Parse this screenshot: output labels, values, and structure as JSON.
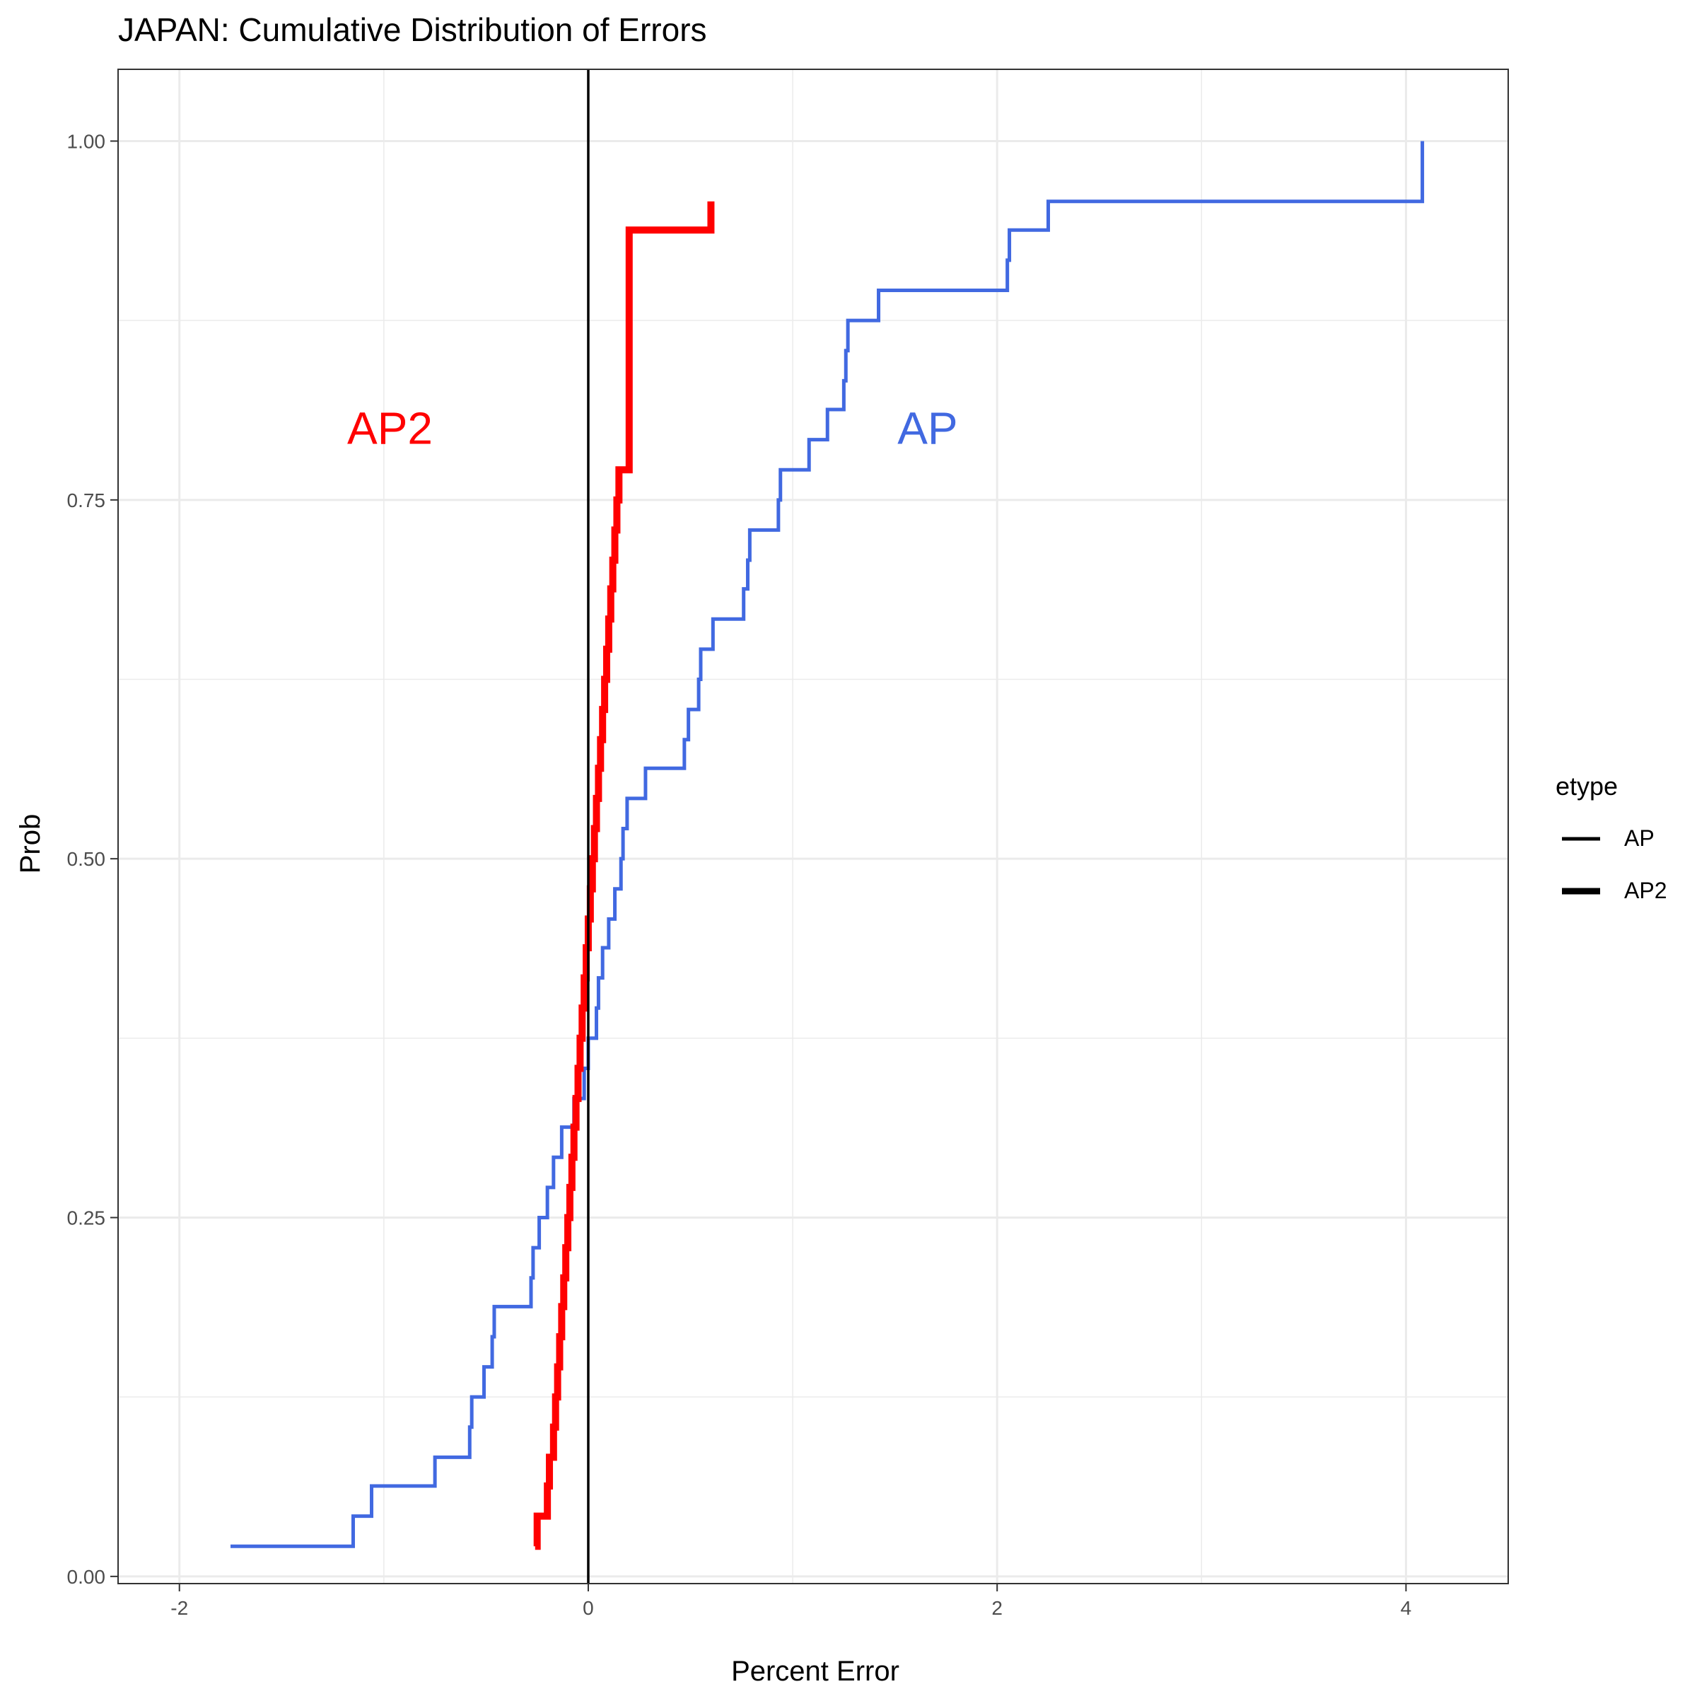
{
  "chart_data": {
    "type": "line",
    "title": "JAPAN: Cumulative Distribution of Errors",
    "xlabel": "Percent Error",
    "ylabel": "Prob",
    "xlim": [
      -2.3,
      4.5
    ],
    "ylim": [
      -0.005,
      1.05
    ],
    "x_ticks": [
      {
        "value": -2,
        "label": "-2"
      },
      {
        "value": 0,
        "label": "0"
      },
      {
        "value": 2,
        "label": "2"
      },
      {
        "value": 4,
        "label": "4"
      }
    ],
    "y_ticks": [
      {
        "value": 0,
        "label": "0.00"
      },
      {
        "value": 0.25,
        "label": "0.25"
      },
      {
        "value": 0.5,
        "label": "0.50"
      },
      {
        "value": 0.75,
        "label": "0.75"
      },
      {
        "value": 1,
        "label": "1.00"
      }
    ],
    "grid": true,
    "vline_x": 0,
    "legend": {
      "title": "etype",
      "position": "right",
      "entries": [
        "AP",
        "AP2"
      ]
    },
    "annotations": [
      {
        "text": "AP2",
        "x": -0.97,
        "y": 0.8,
        "color": "#ff0000"
      },
      {
        "text": "AP",
        "x": 1.66,
        "y": 0.8,
        "color": "#4169e1"
      }
    ],
    "series": [
      {
        "name": "AP",
        "color": "#4169e1",
        "step_x": [
          -1.75,
          -1.15,
          -1.06,
          -0.75,
          -0.58,
          -0.57,
          -0.51,
          -0.47,
          -0.46,
          -0.28,
          -0.27,
          -0.24,
          -0.2,
          -0.17,
          -0.13,
          -0.07,
          -0.02,
          0,
          0.04,
          0.05,
          0.07,
          0.1,
          0.13,
          0.16,
          0.17,
          0.19,
          0.28,
          0.47,
          0.49,
          0.54,
          0.55,
          0.61,
          0.76,
          0.78,
          0.79,
          0.93,
          0.94,
          1.08,
          1.17,
          1.25,
          1.26,
          1.27,
          1.42,
          2.05,
          2.06,
          2.25,
          4.08
        ],
        "step_y": [
          0.021,
          0.042,
          0.063,
          0.083,
          0.104,
          0.125,
          0.146,
          0.167,
          0.188,
          0.208,
          0.229,
          0.25,
          0.271,
          0.292,
          0.313,
          0.333,
          0.354,
          0.375,
          0.396,
          0.417,
          0.438,
          0.458,
          0.479,
          0.5,
          0.521,
          0.542,
          0.563,
          0.583,
          0.604,
          0.625,
          0.646,
          0.667,
          0.688,
          0.708,
          0.729,
          0.75,
          0.771,
          0.792,
          0.813,
          0.833,
          0.854,
          0.875,
          0.896,
          0.917,
          0.938,
          0.958,
          0.979
        ],
        "end": [
          4.08,
          1.0
        ]
      },
      {
        "name": "AP2",
        "color": "#ff0000",
        "step_x": [
          -0.26,
          -0.25,
          -0.2,
          -0.19,
          -0.17,
          -0.16,
          -0.15,
          -0.14,
          -0.13,
          -0.12,
          -0.11,
          -0.1,
          -0.09,
          -0.08,
          -0.07,
          -0.06,
          -0.05,
          -0.04,
          -0.03,
          -0.02,
          -0.01,
          0,
          0.01,
          0.02,
          0.03,
          0.04,
          0.05,
          0.06,
          0.07,
          0.08,
          0.09,
          0.1,
          0.11,
          0.12,
          0.13,
          0.14,
          0.15,
          0.2
        ],
        "step_y": [
          0.021,
          0.042,
          0.063,
          0.083,
          0.104,
          0.125,
          0.146,
          0.167,
          0.188,
          0.208,
          0.229,
          0.25,
          0.271,
          0.292,
          0.313,
          0.333,
          0.354,
          0.375,
          0.396,
          0.417,
          0.438,
          0.458,
          0.479,
          0.5,
          0.521,
          0.542,
          0.563,
          0.583,
          0.604,
          0.625,
          0.646,
          0.667,
          0.688,
          0.708,
          0.729,
          0.75,
          0.771,
          0.813
        ],
        "tail": [
          [
            0.2,
            0.938
          ],
          [
            0.6,
            0.938
          ],
          [
            0.6,
            0.958
          ]
        ]
      }
    ]
  }
}
